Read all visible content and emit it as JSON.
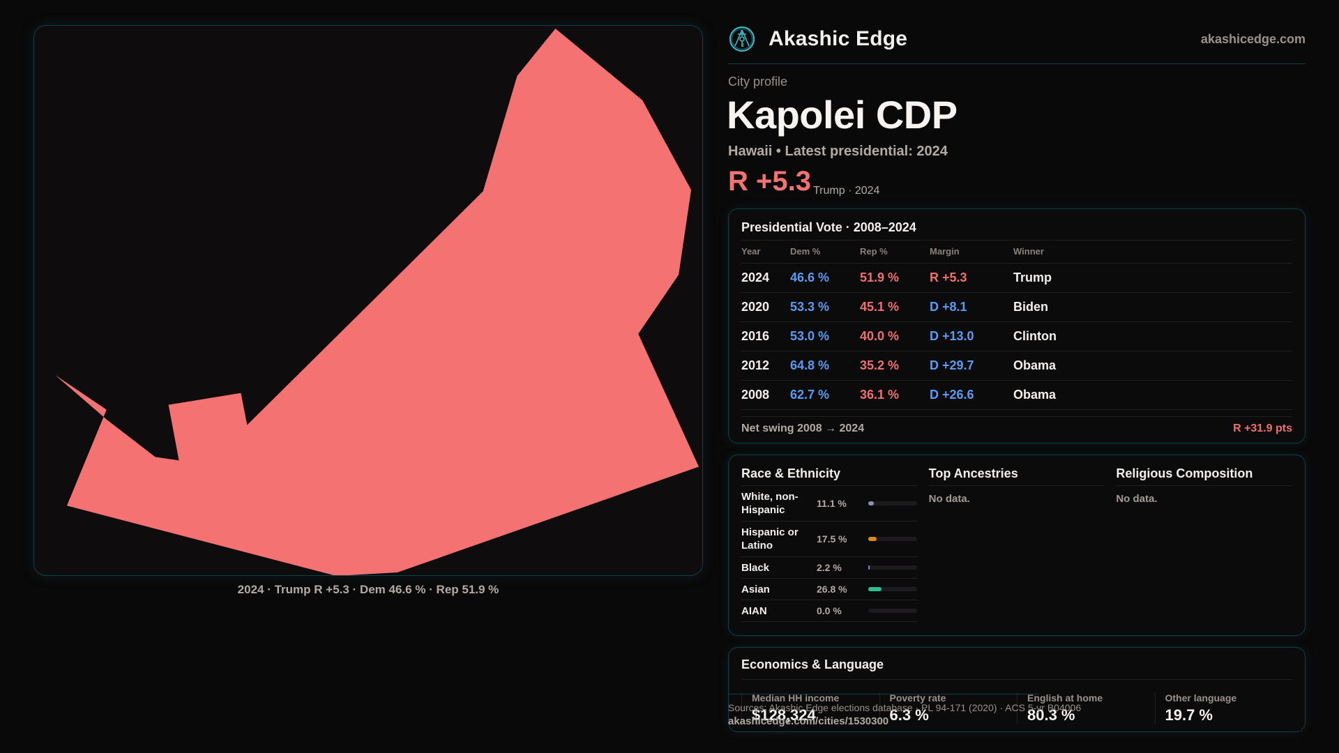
{
  "brand": {
    "name": "Akashic Edge",
    "logo_icon": "compass-key-emblem-icon",
    "site_link": "akashicedge.com",
    "accent_color": "#3fb8c8"
  },
  "profile": {
    "eyebrow": "City profile",
    "title": "Kapolei CDP",
    "subtitle": "Hawaii • Latest presidential: 2024",
    "margin": "R +5.3",
    "margin_note": "Trump · 2024",
    "margin_color": "#f47272"
  },
  "map": {
    "fill_color": "#f47272",
    "caption": "2024 · Trump R +5.3 · Dem 46.6 % · Rep 51.9 %"
  },
  "vote": {
    "title": "Presidential Vote · 2008–2024",
    "headers": [
      "Year",
      "Dem %",
      "Rep %",
      "Margin",
      "Winner"
    ],
    "rows": [
      {
        "year": "2024",
        "dem": "46.6 %",
        "rep": "51.9 %",
        "margin": "R +5.3",
        "party": "R",
        "winner": "Trump"
      },
      {
        "year": "2020",
        "dem": "53.3 %",
        "rep": "45.1 %",
        "margin": "D +8.1",
        "party": "D",
        "winner": "Biden"
      },
      {
        "year": "2016",
        "dem": "53.0 %",
        "rep": "40.0 %",
        "margin": "D +13.0",
        "party": "D",
        "winner": "Clinton"
      },
      {
        "year": "2012",
        "dem": "64.8 %",
        "rep": "35.2 %",
        "margin": "D +29.7",
        "party": "D",
        "winner": "Obama"
      },
      {
        "year": "2008",
        "dem": "62.7 %",
        "rep": "36.1 %",
        "margin": "D +26.6",
        "party": "D",
        "winner": "Obama"
      }
    ],
    "swing_label": "Net swing 2008 → 2024",
    "swing_value": "R +31.9 pts",
    "dem_color": "#5b9bf2",
    "rep_color": "#f07070"
  },
  "race": {
    "title": "Race & Ethnicity",
    "rows": [
      {
        "label": "White, non-Hispanic",
        "pct": "11.1 %",
        "value": 11.1,
        "color": "#8a94a8"
      },
      {
        "label": "Hispanic or Latino",
        "pct": "17.5 %",
        "value": 17.5,
        "color": "#d98c14"
      },
      {
        "label": "Black",
        "pct": "2.2 %",
        "value": 2.2,
        "color": "#8f7ad8"
      },
      {
        "label": "Asian",
        "pct": "26.8 %",
        "value": 26.8,
        "color": "#2fbf8a"
      },
      {
        "label": "AIAN",
        "pct": "0.0 %",
        "value": 0.0,
        "color": "#555555"
      }
    ]
  },
  "ancestries": {
    "title": "Top Ancestries",
    "empty": "No data."
  },
  "religion": {
    "title": "Religious Composition",
    "empty": "No data."
  },
  "econ": {
    "title": "Economics & Language",
    "items": [
      {
        "label": "Median HH income",
        "value": "$128,324"
      },
      {
        "label": "Poverty rate",
        "value": "6.3 %"
      },
      {
        "label": "English at home",
        "value": "80.3 %"
      },
      {
        "label": "Other language",
        "value": "19.7 %"
      }
    ]
  },
  "footer": {
    "sources": "Sources: Akashic Edge elections database · PL 94-171 (2020) · ACS 5-yr B04006",
    "url": "akashicedge.com/cities/1530300"
  }
}
